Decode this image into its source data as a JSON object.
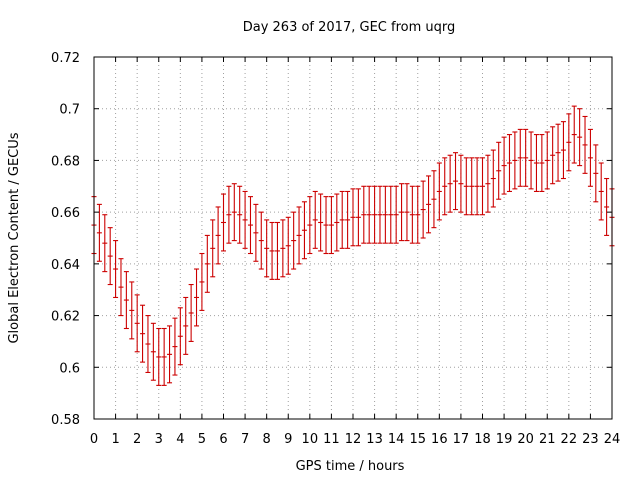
{
  "chart_data": {
    "type": "line",
    "style": "errorbars",
    "title": "Day 263 of 2017, GEC from uqrg",
    "xlabel": "GPS time / hours",
    "ylabel": "Global Electron Content / GECUs",
    "xlim": [
      0,
      24
    ],
    "ylim": [
      0.58,
      0.72
    ],
    "xticks": [
      0,
      1,
      2,
      3,
      4,
      5,
      6,
      7,
      8,
      9,
      10,
      11,
      12,
      13,
      14,
      15,
      16,
      17,
      18,
      19,
      20,
      21,
      22,
      23,
      24
    ],
    "yticks": [
      0.58,
      0.6,
      0.62,
      0.64,
      0.66,
      0.68,
      0.7,
      0.72
    ],
    "ytick_labels": [
      "0.58",
      "0.6",
      "0.62",
      "0.64",
      "0.66",
      "0.68",
      "0.7",
      "0.72"
    ],
    "grid": true,
    "series_color": "#cc0000",
    "x": [
      0.0,
      0.25,
      0.5,
      0.75,
      1.0,
      1.25,
      1.5,
      1.75,
      2.0,
      2.25,
      2.5,
      2.75,
      3.0,
      3.25,
      3.5,
      3.75,
      4.0,
      4.25,
      4.5,
      4.75,
      5.0,
      5.25,
      5.5,
      5.75,
      6.0,
      6.25,
      6.5,
      6.75,
      7.0,
      7.25,
      7.5,
      7.75,
      8.0,
      8.25,
      8.5,
      8.75,
      9.0,
      9.25,
      9.5,
      9.75,
      10.0,
      10.25,
      10.5,
      10.75,
      11.0,
      11.25,
      11.5,
      11.75,
      12.0,
      12.25,
      12.5,
      12.75,
      13.0,
      13.25,
      13.5,
      13.75,
      14.0,
      14.25,
      14.5,
      14.75,
      15.0,
      15.25,
      15.5,
      15.75,
      16.0,
      16.25,
      16.5,
      16.75,
      17.0,
      17.25,
      17.5,
      17.75,
      18.0,
      18.25,
      18.5,
      18.75,
      19.0,
      19.25,
      19.5,
      19.75,
      20.0,
      20.25,
      20.5,
      20.75,
      21.0,
      21.25,
      21.5,
      21.75,
      22.0,
      22.25,
      22.5,
      22.75,
      23.0,
      23.25,
      23.5,
      23.75,
      24.0
    ],
    "y": [
      0.655,
      0.652,
      0.648,
      0.643,
      0.638,
      0.631,
      0.626,
      0.622,
      0.617,
      0.613,
      0.609,
      0.606,
      0.604,
      0.604,
      0.605,
      0.608,
      0.612,
      0.616,
      0.621,
      0.627,
      0.633,
      0.64,
      0.646,
      0.651,
      0.656,
      0.659,
      0.66,
      0.659,
      0.657,
      0.655,
      0.652,
      0.649,
      0.646,
      0.645,
      0.645,
      0.646,
      0.647,
      0.649,
      0.651,
      0.653,
      0.655,
      0.657,
      0.656,
      0.655,
      0.655,
      0.656,
      0.657,
      0.657,
      0.658,
      0.658,
      0.659,
      0.659,
      0.659,
      0.659,
      0.659,
      0.659,
      0.659,
      0.66,
      0.66,
      0.659,
      0.659,
      0.661,
      0.663,
      0.665,
      0.668,
      0.67,
      0.671,
      0.672,
      0.671,
      0.67,
      0.67,
      0.67,
      0.67,
      0.671,
      0.673,
      0.676,
      0.678,
      0.679,
      0.68,
      0.681,
      0.681,
      0.68,
      0.679,
      0.679,
      0.68,
      0.682,
      0.683,
      0.684,
      0.687,
      0.69,
      0.689,
      0.686,
      0.681,
      0.675,
      0.668,
      0.662,
      0.658
    ],
    "err": [
      0.011,
      0.011,
      0.011,
      0.011,
      0.011,
      0.011,
      0.011,
      0.011,
      0.011,
      0.011,
      0.011,
      0.011,
      0.011,
      0.011,
      0.011,
      0.011,
      0.011,
      0.011,
      0.011,
      0.011,
      0.011,
      0.011,
      0.011,
      0.011,
      0.011,
      0.011,
      0.011,
      0.011,
      0.011,
      0.011,
      0.011,
      0.011,
      0.011,
      0.011,
      0.011,
      0.011,
      0.011,
      0.011,
      0.011,
      0.011,
      0.011,
      0.011,
      0.011,
      0.011,
      0.011,
      0.011,
      0.011,
      0.011,
      0.011,
      0.011,
      0.011,
      0.011,
      0.011,
      0.011,
      0.011,
      0.011,
      0.011,
      0.011,
      0.011,
      0.011,
      0.011,
      0.011,
      0.011,
      0.011,
      0.011,
      0.011,
      0.011,
      0.011,
      0.011,
      0.011,
      0.011,
      0.011,
      0.011,
      0.011,
      0.011,
      0.011,
      0.011,
      0.011,
      0.011,
      0.011,
      0.011,
      0.011,
      0.011,
      0.011,
      0.011,
      0.011,
      0.011,
      0.011,
      0.011,
      0.011,
      0.011,
      0.011,
      0.011,
      0.011,
      0.011,
      0.011,
      0.011
    ]
  }
}
